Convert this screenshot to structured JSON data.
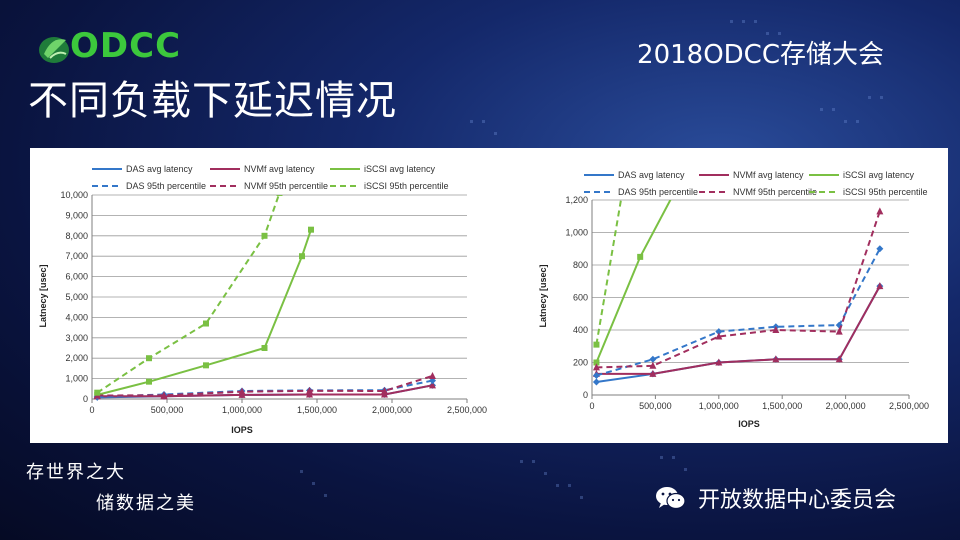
{
  "header": {
    "logo_text": "ODCC",
    "event_title": "2018ODCC存储大会",
    "page_title": "不同负载下延迟情况"
  },
  "footer": {
    "slogan_line1": "存世界之大",
    "slogan_line2": "储数据之美",
    "org_name": "开放数据中心委员会"
  },
  "colors": {
    "das": "#3477c9",
    "nvmf": "#a12e5e",
    "iscsi": "#7ac043"
  },
  "icons": [
    "odcc-leaf-logo-icon",
    "wechat-icon"
  ],
  "chart_data": [
    {
      "type": "line",
      "xlabel": "IOPS",
      "ylabel": "Latnecy  [usec]",
      "xlim": [
        0,
        2500000
      ],
      "ylim": [
        0,
        10000
      ],
      "x_ticks": [
        0,
        500000,
        1000000,
        1500000,
        2000000,
        2500000
      ],
      "x_tick_labels": [
        "0",
        "500,000",
        "1,000,000",
        "1,500,000",
        "2,000,000",
        "2,500,000"
      ],
      "y_ticks": [
        0,
        1000,
        2000,
        3000,
        4000,
        5000,
        6000,
        7000,
        8000,
        9000,
        10000
      ],
      "y_tick_labels": [
        "0",
        "1,000",
        "2,000",
        "3,000",
        "4,000",
        "5,000",
        "6,000",
        "7,000",
        "8,000",
        "9,000",
        "10,000"
      ],
      "grid": "horizontal",
      "legend_position": "top",
      "series": [
        {
          "name": "DAS avg latency",
          "color": "#3477c9",
          "dash": false,
          "marker": "diamond",
          "x": [
            35000,
            480000,
            1000000,
            1450000,
            1950000,
            2270000
          ],
          "y": [
            80,
            130,
            200,
            220,
            220,
            670
          ]
        },
        {
          "name": "NVMf avg latency",
          "color": "#a12e5e",
          "dash": false,
          "marker": "triangle",
          "x": [
            35000,
            480000,
            1000000,
            1450000,
            1950000,
            2270000
          ],
          "y": [
            130,
            130,
            200,
            220,
            220,
            670
          ]
        },
        {
          "name": "iSCSI avg latency",
          "color": "#7ac043",
          "dash": false,
          "marker": "square",
          "x": [
            35000,
            380000,
            760000,
            1150000,
            1400000,
            1460000
          ],
          "y": [
            200,
            850,
            1650,
            2500,
            7000,
            8300
          ]
        },
        {
          "name": "DAS 95th percentile",
          "color": "#3477c9",
          "dash": true,
          "marker": "diamond",
          "x": [
            35000,
            480000,
            1000000,
            1450000,
            1950000,
            2270000
          ],
          "y": [
            120,
            220,
            390,
            420,
            430,
            900
          ]
        },
        {
          "name": "NVMf 95th percentile",
          "color": "#a12e5e",
          "dash": true,
          "marker": "triangle",
          "x": [
            35000,
            480000,
            1000000,
            1450000,
            1950000,
            2270000
          ],
          "y": [
            170,
            180,
            360,
            400,
            390,
            1130
          ]
        },
        {
          "name": "iSCSI 95th percentile",
          "color": "#7ac043",
          "dash": true,
          "marker": "square",
          "x": [
            35000,
            380000,
            760000,
            1150000,
            1250000
          ],
          "y": [
            310,
            2000,
            3700,
            8000,
            10100
          ]
        }
      ]
    },
    {
      "type": "line",
      "xlabel": "IOPS",
      "ylabel": "Latnecy  [usec]",
      "xlim": [
        0,
        2500000
      ],
      "ylim": [
        0,
        1200
      ],
      "x_ticks": [
        0,
        500000,
        1000000,
        1500000,
        2000000,
        2500000
      ],
      "x_tick_labels": [
        "0",
        "500,000",
        "1,000,000",
        "1,500,000",
        "2,000,000",
        "2,500,000"
      ],
      "y_ticks": [
        0,
        200,
        400,
        600,
        800,
        1000,
        1200
      ],
      "y_tick_labels": [
        "0",
        "200",
        "400",
        "600",
        "800",
        "1,000",
        "1,200"
      ],
      "grid": "horizontal",
      "legend_position": "top",
      "series": [
        {
          "name": "DAS avg latency",
          "color": "#3477c9",
          "dash": false,
          "marker": "diamond",
          "x": [
            35000,
            480000,
            1000000,
            1450000,
            1950000,
            2270000
          ],
          "y": [
            80,
            130,
            200,
            220,
            220,
            670
          ]
        },
        {
          "name": "NVMf avg latency",
          "color": "#a12e5e",
          "dash": false,
          "marker": "triangle",
          "x": [
            35000,
            480000,
            1000000,
            1450000,
            1950000,
            2270000
          ],
          "y": [
            130,
            130,
            200,
            220,
            220,
            670
          ]
        },
        {
          "name": "iSCSI avg latency",
          "color": "#7ac043",
          "dash": false,
          "marker": "square",
          "x": [
            35000,
            380000,
            720000
          ],
          "y": [
            200,
            850,
            1350
          ]
        },
        {
          "name": "DAS 95th percentile",
          "color": "#3477c9",
          "dash": true,
          "marker": "diamond",
          "x": [
            35000,
            480000,
            1000000,
            1450000,
            1950000,
            2270000
          ],
          "y": [
            120,
            220,
            390,
            420,
            430,
            900
          ]
        },
        {
          "name": "NVMf 95th percentile",
          "color": "#a12e5e",
          "dash": true,
          "marker": "triangle",
          "x": [
            35000,
            480000,
            1000000,
            1450000,
            1950000,
            2270000
          ],
          "y": [
            170,
            180,
            360,
            400,
            390,
            1130
          ]
        },
        {
          "name": "iSCSI 95th percentile",
          "color": "#7ac043",
          "dash": true,
          "marker": "square",
          "x": [
            35000,
            250000
          ],
          "y": [
            310,
            1300
          ]
        }
      ]
    }
  ]
}
